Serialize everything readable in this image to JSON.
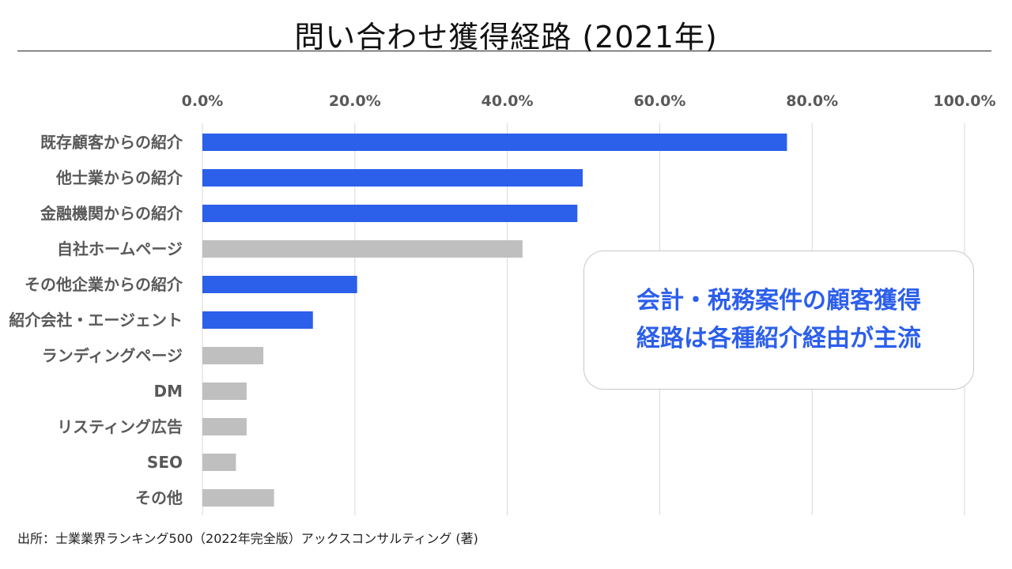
{
  "chart_data": {
    "type": "bar",
    "orientation": "horizontal",
    "title": "問い合わせ獲得経路 (2021年)",
    "categories": [
      "既存顧客からの紹介",
      "他士業からの紹介",
      "金融機関からの紹介",
      "自社ホームページ",
      "その他企業からの紹介",
      "紹介会社・エージェント",
      "ランディングページ",
      "DM",
      "リスティング広告",
      "SEO",
      "その他"
    ],
    "values": [
      76.7,
      49.9,
      49.2,
      42.0,
      20.3,
      14.5,
      8.0,
      5.8,
      5.8,
      4.4,
      9.4
    ],
    "highlighted": [
      true,
      true,
      true,
      false,
      true,
      true,
      false,
      false,
      false,
      false,
      false
    ],
    "x_ticks": [
      "0.0%",
      "20.0%",
      "40.0%",
      "60.0%",
      "80.0%",
      "100.0%"
    ],
    "xlim": [
      0,
      100
    ],
    "xlabel": "",
    "ylabel": "",
    "grid": true,
    "colors": {
      "highlight": "#2c5fea",
      "other": "#bfbfbf",
      "grid": "#d9d9d9",
      "tick_text": "#595959"
    }
  },
  "callout": {
    "line1": "会計・税務案件の顧客獲得",
    "line2": "経路は各種紹介経由が主流"
  },
  "source": "出所：士業業界ランキング500（2022年完全版）アックスコンサルティング (著)"
}
